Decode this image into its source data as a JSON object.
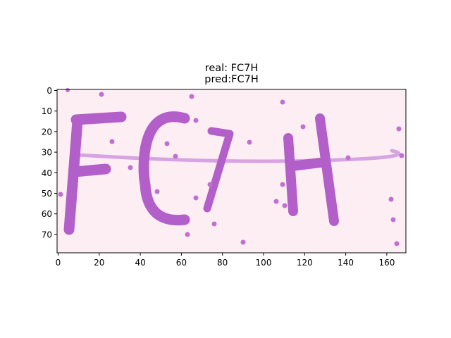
{
  "figure": {
    "title_line1": "real: FC7H",
    "title_line2": "pred:FC7H"
  },
  "captcha_image": {
    "text": "FC7H",
    "background_color": "#fdeef3",
    "glyph_color": "#b35fca",
    "noise_color": "#c070d0"
  },
  "axes": {
    "x_ticks": [
      "0",
      "20",
      "40",
      "60",
      "80",
      "100",
      "120",
      "140",
      "160"
    ],
    "y_ticks": [
      "0",
      "10",
      "20",
      "30",
      "40",
      "50",
      "60",
      "70"
    ]
  }
}
